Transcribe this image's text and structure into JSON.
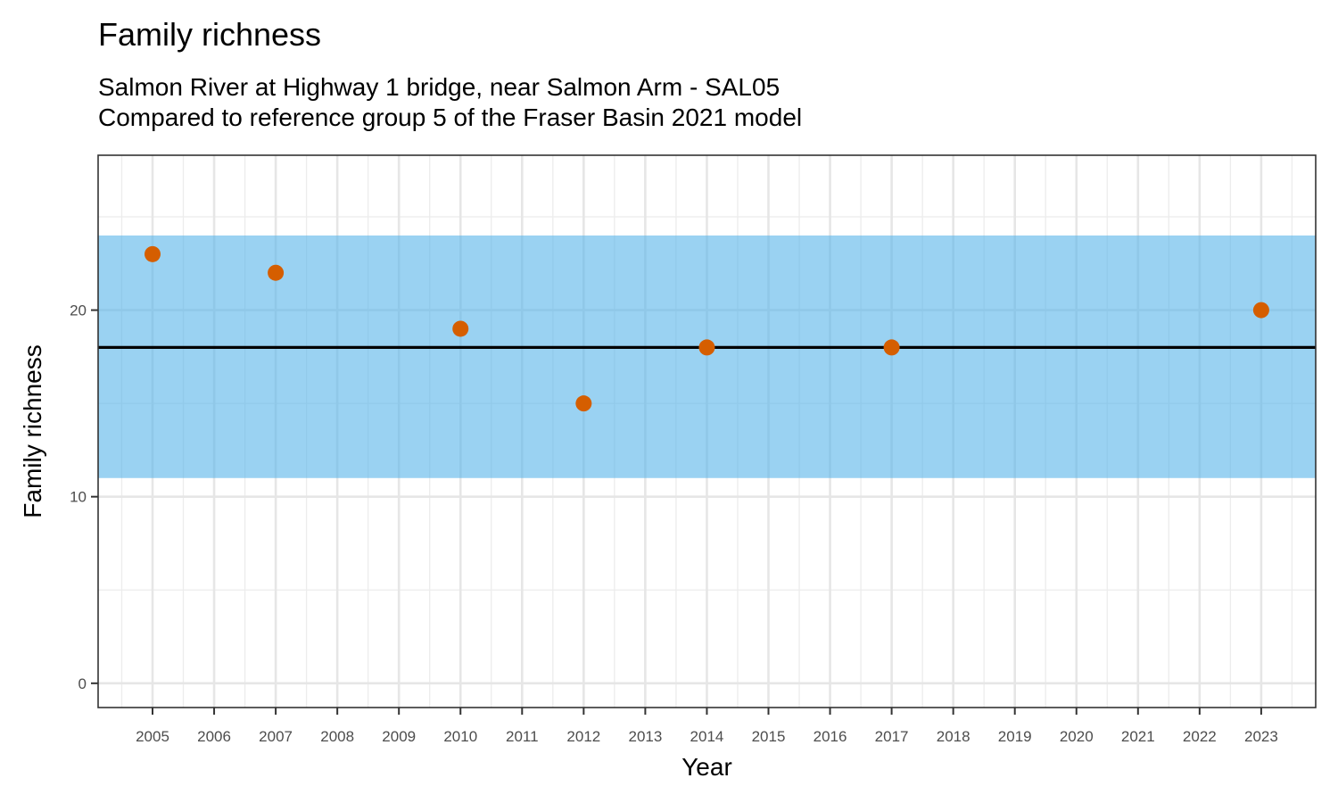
{
  "chart_data": {
    "type": "scatter",
    "title": "Family richness",
    "subtitle": [
      "Salmon River at Highway 1 bridge, near Salmon Arm - SAL05",
      "Compared to reference group 5 of the Fraser Basin 2021 model"
    ],
    "xlabel": "Year",
    "ylabel": "Family richness",
    "x_ticks": [
      "2005",
      "2006",
      "2007",
      "2008",
      "2009",
      "2010",
      "2011",
      "2012",
      "2013",
      "2014",
      "2015",
      "2016",
      "2017",
      "2018",
      "2019",
      "2020",
      "2021",
      "2022",
      "2023"
    ],
    "y_ticks": [
      0,
      10,
      20
    ],
    "ylim": [
      -1.3,
      28.3
    ],
    "reference_band": {
      "low": 11,
      "high": 24,
      "color": "#56B4E9"
    },
    "reference_line": 18,
    "points": [
      {
        "x": "2005",
        "y": 23
      },
      {
        "x": "2007",
        "y": 22
      },
      {
        "x": "2010",
        "y": 19
      },
      {
        "x": "2012",
        "y": 15
      },
      {
        "x": "2014",
        "y": 18
      },
      {
        "x": "2017",
        "y": 18
      },
      {
        "x": "2023",
        "y": 20
      }
    ],
    "point_color": "#D55E00",
    "grid": true
  }
}
